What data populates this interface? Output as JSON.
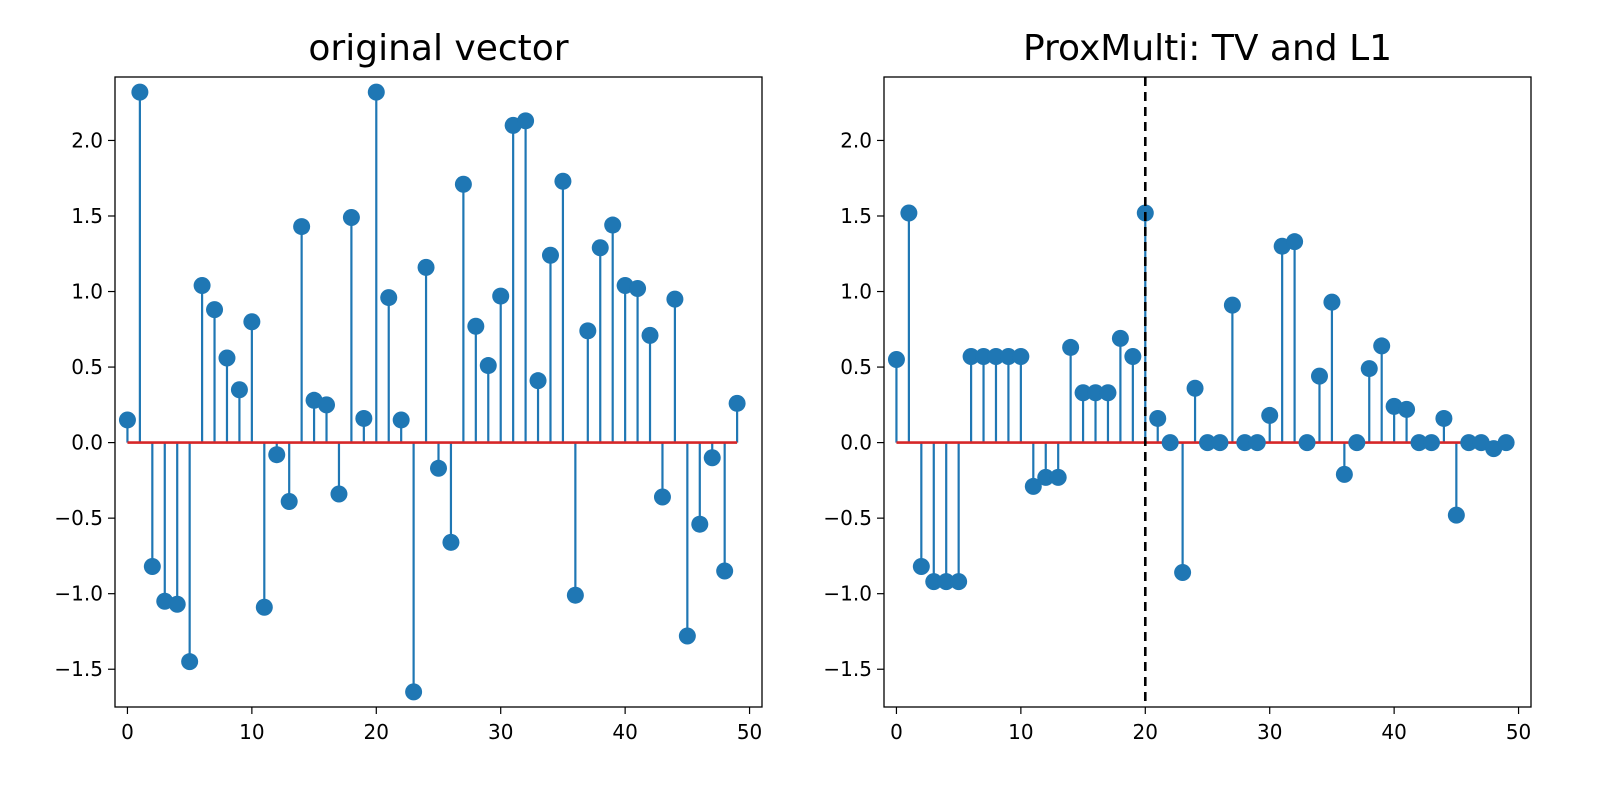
{
  "chart_data": [
    {
      "type": "stem",
      "title": "original vector",
      "xlabel": "",
      "ylabel": "",
      "xlim": [
        -1,
        51
      ],
      "ylim": [
        -1.75,
        2.42
      ],
      "xticks": [
        0,
        10,
        20,
        30,
        40,
        50
      ],
      "yticks": [
        -1.5,
        -1.0,
        -0.5,
        0.0,
        0.5,
        1.0,
        1.5,
        2.0
      ],
      "xtick_labels": [
        "0",
        "10",
        "20",
        "30",
        "40",
        "50"
      ],
      "ytick_labels": [
        "−1.5",
        "−1.0",
        "−0.5",
        "0.0",
        "0.5",
        "1.0",
        "1.5",
        "2.0"
      ],
      "stem_color": "#1f77b4",
      "baseline_color": "#d62728",
      "x": [
        0,
        1,
        2,
        3,
        4,
        5,
        6,
        7,
        8,
        9,
        10,
        11,
        12,
        13,
        14,
        15,
        16,
        17,
        18,
        19,
        20,
        21,
        22,
        23,
        24,
        25,
        26,
        27,
        28,
        29,
        30,
        31,
        32,
        33,
        34,
        35,
        36,
        37,
        38,
        39,
        40,
        41,
        42,
        43,
        44,
        45,
        46,
        47,
        48,
        49
      ],
      "values": [
        0.15,
        2.32,
        -0.82,
        -1.05,
        -1.07,
        -1.45,
        1.04,
        0.88,
        0.56,
        0.35,
        0.8,
        -1.09,
        -0.08,
        -0.39,
        1.43,
        0.28,
        0.25,
        -0.34,
        1.49,
        0.16,
        2.32,
        0.96,
        0.15,
        -1.65,
        1.16,
        -0.17,
        -0.66,
        1.71,
        0.77,
        0.51,
        0.97,
        2.1,
        2.13,
        0.41,
        1.24,
        1.73,
        -1.01,
        0.74,
        1.29,
        1.44,
        1.04,
        1.02,
        0.71,
        -0.36,
        0.95,
        -1.28,
        -0.54,
        -0.1,
        -0.85,
        0.26
      ]
    },
    {
      "type": "stem",
      "title": "ProxMulti: TV and L1",
      "xlabel": "",
      "ylabel": "",
      "xlim": [
        -1,
        51
      ],
      "ylim": [
        -1.75,
        2.42
      ],
      "xticks": [
        0,
        10,
        20,
        30,
        40,
        50
      ],
      "yticks": [
        -1.5,
        -1.0,
        -0.5,
        0.0,
        0.5,
        1.0,
        1.5,
        2.0
      ],
      "xtick_labels": [
        "0",
        "10",
        "20",
        "30",
        "40",
        "50"
      ],
      "ytick_labels": [
        "−1.5",
        "−1.0",
        "−0.5",
        "0.0",
        "0.5",
        "1.0",
        "1.5",
        "2.0"
      ],
      "stem_color": "#1f77b4",
      "baseline_color": "#d62728",
      "vline": {
        "x": 20,
        "style": "dashed",
        "color": "#000000"
      },
      "x": [
        0,
        1,
        2,
        3,
        4,
        5,
        6,
        7,
        8,
        9,
        10,
        11,
        12,
        13,
        14,
        15,
        16,
        17,
        18,
        19,
        20,
        21,
        22,
        23,
        24,
        25,
        26,
        27,
        28,
        29,
        30,
        31,
        32,
        33,
        34,
        35,
        36,
        37,
        38,
        39,
        40,
        41,
        42,
        43,
        44,
        45,
        46,
        47,
        48,
        49
      ],
      "values": [
        0.55,
        1.52,
        -0.82,
        -0.92,
        -0.92,
        -0.92,
        0.57,
        0.57,
        0.57,
        0.57,
        0.57,
        -0.29,
        -0.23,
        -0.23,
        0.63,
        0.33,
        0.33,
        0.33,
        0.69,
        0.57,
        1.52,
        0.16,
        0.0,
        -0.86,
        0.36,
        0.0,
        0.0,
        0.91,
        0.0,
        0.0,
        0.18,
        1.3,
        1.33,
        0.0,
        0.44,
        0.93,
        -0.21,
        0.0,
        0.49,
        0.64,
        0.24,
        0.22,
        0.0,
        0.0,
        0.16,
        -0.48,
        0.0,
        0.0,
        -0.04,
        0.0
      ]
    }
  ]
}
